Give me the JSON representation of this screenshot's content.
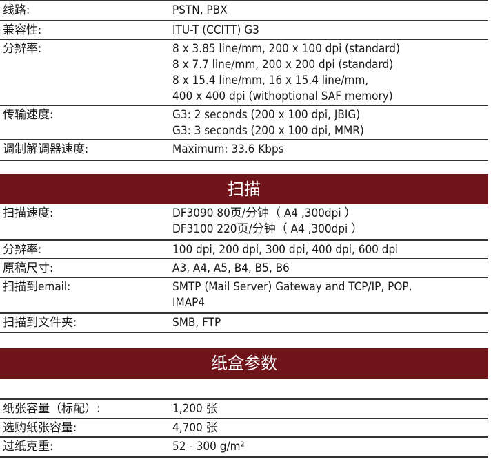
{
  "fax_rows": [
    {
      "label": "线路:",
      "value": "PSTN, PBX"
    },
    {
      "label": "兼容性:",
      "value": "ITU-T (CCITT) G3"
    },
    {
      "label": "分辨率:",
      "value": "8 x 3.85 line/mm, 200 x 100 dpi (standard)\n8 x 7.7 line/mm, 200 x 200 dpi (standard)\n8 x 15.4 line/mm, 16 x 15.4 line/mm,\n400 x 400 dpi (withoptional SAF memory)"
    },
    {
      "label": "传输速度:",
      "value": "G3: 2 seconds (200 x 100 dpi, JBIG)\nG3: 3 seconds (200 x 100 dpi, MMR)"
    },
    {
      "label": "调制解调器速度:",
      "value": "Maximum: 33.6 Kbps"
    }
  ],
  "scan": {
    "title": "扫描",
    "rows": [
      {
        "label": "扫描速度:",
        "value": "DF3090  80页/分钟（ A4 ,300dpi ）\nDF3100  220页/分钟（ A4 ,300dpi ）"
      },
      {
        "label": "分辨率:",
        "value": "100 dpi, 200 dpi, 300 dpi, 400 dpi, 600 dpi"
      },
      {
        "label": "原稿尺寸:",
        "value": "A3, A4, A5, B4, B5, B6"
      },
      {
        "label": "扫描到email:",
        "value": "SMTP (Mail Server) Gateway and TCP/IP, POP,\nIMAP4"
      },
      {
        "label": "扫描到文件夹:",
        "value": "SMB, FTP"
      }
    ]
  },
  "paper": {
    "title": "纸盒参数",
    "rows": [
      {
        "label": "纸张容量（标配）:",
        "value": "1,200 张"
      },
      {
        "label": "选购纸张容量:",
        "value": "4,700 张"
      },
      {
        "label": "过纸克重:",
        "value": "52 - 300 g/m²"
      }
    ]
  },
  "colors": {
    "header_bg": "#6f1419"
  }
}
